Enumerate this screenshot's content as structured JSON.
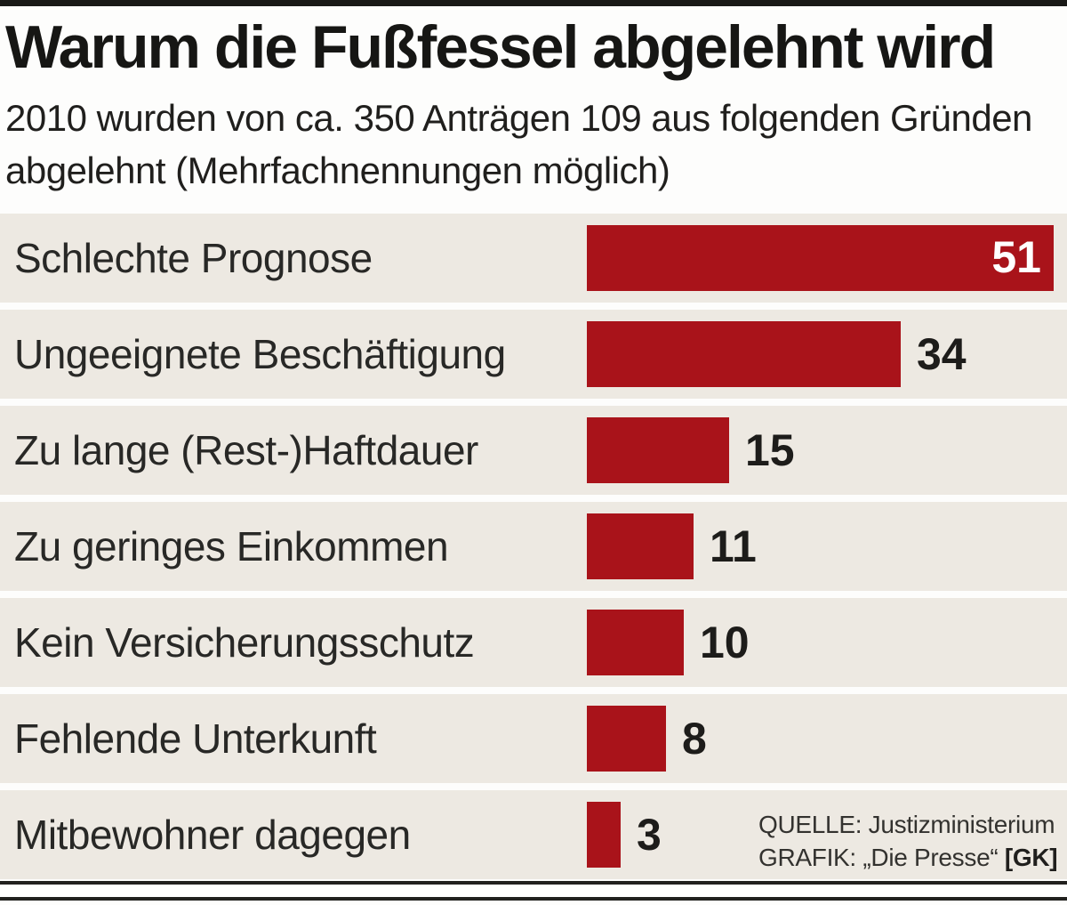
{
  "header": {
    "title": "Warum die Fußfessel abgelehnt wird",
    "subtitle_line1": "2010 wurden von ca. 350 Anträgen 109 aus folgenden Gründen",
    "subtitle_line2": "abgelehnt (Mehrfachnennungen möglich)"
  },
  "chart_data": {
    "type": "bar",
    "orientation": "horizontal",
    "title": "Warum die Fußfessel abgelehnt wird",
    "subtitle": "2010 wurden von ca. 350 Anträgen 109 aus folgenden Gründen abgelehnt (Mehrfachnennungen möglich)",
    "categories": [
      "Schlechte Prognose",
      "Ungeeignete Beschäftigung",
      "Zu lange (Rest-)Haftdauer",
      "Zu geringes Einkommen",
      "Kein Versicherungsschutz",
      "Fehlende Unterkunft",
      "Mitbewohner dagegen"
    ],
    "values": [
      51,
      34,
      15,
      11,
      10,
      8,
      3
    ],
    "xlim": [
      0,
      51
    ],
    "grid": false,
    "legend": false,
    "value_labels": "at-bar-end",
    "bar_color": "#a9131a",
    "row_background_color": "#ede9e2",
    "value_label_color": "#1d1c1a",
    "value_label_inside_color": "#ffffff"
  },
  "source": {
    "line1": "QUELLE: Justizministerium",
    "line2_prefix": "GRAFIK: „Die Presse“ ",
    "line2_bold": "[GK]"
  }
}
